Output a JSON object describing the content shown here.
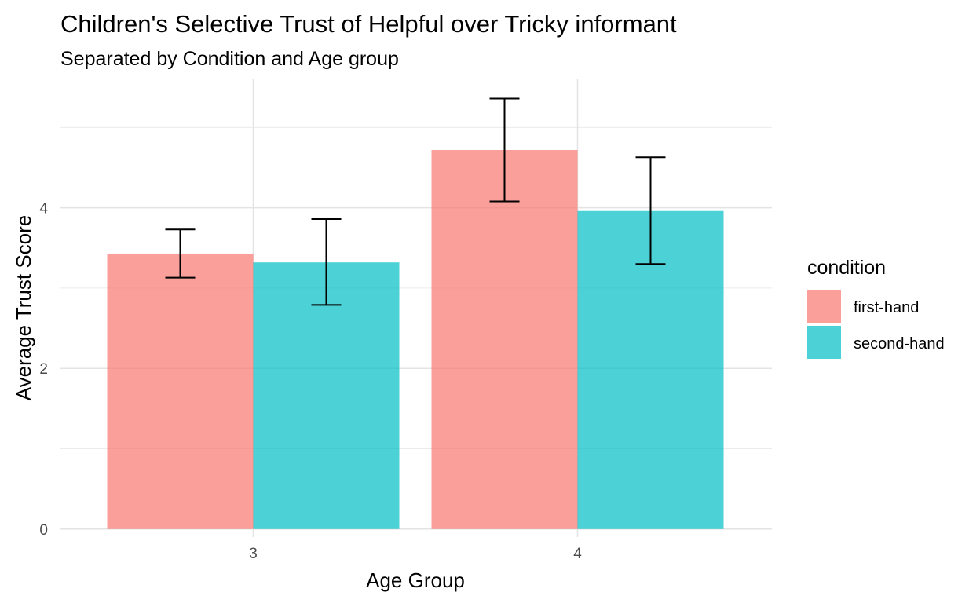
{
  "chart_data": {
    "type": "bar",
    "title": "Children's Selective Trust of Helpful over Tricky informant",
    "subtitle": "Separated by Condition and Age group",
    "xlabel": "Age Group",
    "ylabel": "Average Trust Score",
    "categories": [
      "3",
      "4"
    ],
    "series": [
      {
        "name": "first-hand",
        "color": "#F8766D",
        "values": [
          3.43,
          4.72
        ],
        "error_low": [
          3.13,
          4.08
        ],
        "error_high": [
          3.73,
          5.36
        ]
      },
      {
        "name": "second-hand",
        "color": "#00BFC4",
        "values": [
          3.32,
          3.96
        ],
        "error_low": [
          2.79,
          3.3
        ],
        "error_high": [
          3.86,
          4.63
        ]
      }
    ],
    "ylim": [
      -0.1,
      5.6
    ],
    "yticks": [
      0,
      2,
      4
    ],
    "ytick_labels": [
      "0",
      "2",
      "4"
    ],
    "y_minor_ticks": [
      1,
      3,
      5
    ],
    "grid": true,
    "legend": {
      "title": "condition",
      "placement": "right"
    }
  }
}
